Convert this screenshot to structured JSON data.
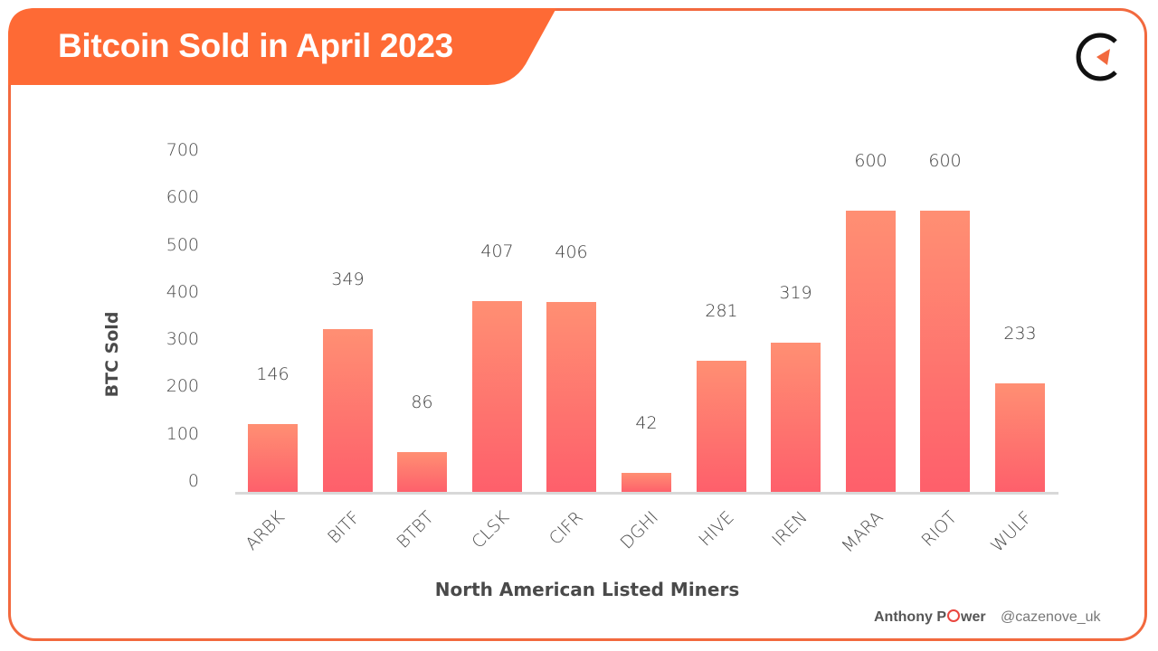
{
  "header": {
    "title": "Bitcoin Sold in April 2023",
    "banner_color": "#fe6a35",
    "border_color": "#f2693e"
  },
  "logo": {
    "icon": "cazenove-c-arrow-logo",
    "ring_color": "#111111",
    "arrow_color": "#f2693e"
  },
  "footer": {
    "author_prefix": "Anthony P",
    "author_o": "O",
    "author_suffix": "wer",
    "handle": "@cazenove_uk"
  },
  "chart_data": {
    "type": "bar",
    "title": "Bitcoin Sold in April 2023",
    "xlabel": "North American Listed Miners",
    "ylabel": "BTC Sold",
    "ylim": [
      0,
      700
    ],
    "yticks": [
      "0",
      "100",
      "200",
      "300",
      "400",
      "500",
      "600",
      "700"
    ],
    "categories": [
      "ARBK",
      "BITF",
      "BTBT",
      "CLSK",
      "CIFR",
      "DGHI",
      "HIVE",
      "IREN",
      "MARA",
      "RIOT",
      "WULF"
    ],
    "values": [
      146,
      349,
      86,
      407,
      406,
      42,
      281,
      319,
      600,
      600,
      233
    ],
    "value_labels": [
      "146",
      "349",
      "86",
      "407",
      "406",
      "42",
      "281",
      "319",
      "600",
      "600",
      "233"
    ],
    "grid": false,
    "legend": null,
    "bar_gradient": [
      "#ff8f73",
      "#fe5f6b"
    ]
  }
}
